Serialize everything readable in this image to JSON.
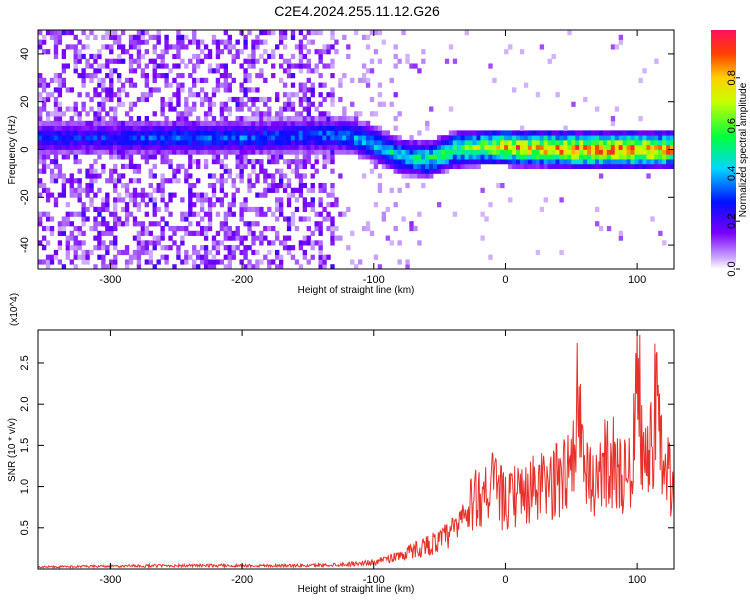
{
  "title": "C2E4.2024.255.11.12.G26",
  "chart_data": [
    {
      "type": "heatmap",
      "xlabel": "Height of straight line (km)",
      "ylabel": "Frequency (Hz)",
      "xlim": [
        -355,
        128
      ],
      "ylim": [
        -50,
        50
      ],
      "xticks": [
        -300,
        -200,
        -100,
        0,
        100
      ],
      "yticks": [
        -40,
        -20,
        0,
        20,
        40
      ],
      "colorbar": {
        "label": "Normalized spectral amplitude",
        "range": [
          0.0,
          1.0
        ],
        "ticks": [
          "0.0",
          "0.2",
          "0.4",
          "0.6",
          "0.8"
        ]
      },
      "ridge": {
        "description_points_x": [
          -300,
          -250,
          -200,
          -150,
          -120,
          -100,
          -80,
          -60,
          -40,
          -20,
          0,
          50,
          100,
          128
        ],
        "center_freq": [
          5,
          5,
          5,
          6,
          6,
          2,
          -3,
          -4,
          0,
          1,
          1,
          0,
          0,
          0
        ],
        "peak_amplitude": [
          0.3,
          0.35,
          0.35,
          0.35,
          0.4,
          0.45,
          0.5,
          0.55,
          0.6,
          0.7,
          0.85,
          0.95,
          0.95,
          0.9
        ]
      }
    },
    {
      "type": "line",
      "xlabel": "Height of straight line (km)",
      "ylabel": "SNR (10 * v/v)",
      "y_multiplier": "(x10^4)",
      "xlim": [
        -355,
        128
      ],
      "ylim": [
        0,
        2.9
      ],
      "xticks": [
        -300,
        -200,
        -100,
        0,
        100
      ],
      "yticks": [
        "0.5",
        "1.0",
        "1.5",
        "2.0",
        "2.5"
      ],
      "color": "#e8302a",
      "series": [
        {
          "x": [
            -355,
            -300,
            -250,
            -200,
            -150,
            -120,
            -100,
            -80,
            -60,
            -50,
            -40,
            -30,
            -20,
            -10,
            0,
            10,
            20,
            30,
            40,
            50,
            55,
            60,
            70,
            80,
            90,
            95,
            100,
            105,
            110,
            115,
            120,
            125,
            128
          ],
          "y": [
            0.03,
            0.04,
            0.05,
            0.05,
            0.05,
            0.07,
            0.1,
            0.2,
            0.35,
            0.4,
            0.55,
            0.8,
            1.1,
            1.25,
            0.95,
            1.1,
            1.15,
            1.2,
            1.3,
            1.6,
            2.5,
            1.25,
            1.4,
            1.65,
            1.3,
            1.5,
            2.9,
            1.6,
            1.7,
            2.7,
            1.1,
            1.5,
            0.8
          ]
        }
      ]
    }
  ]
}
